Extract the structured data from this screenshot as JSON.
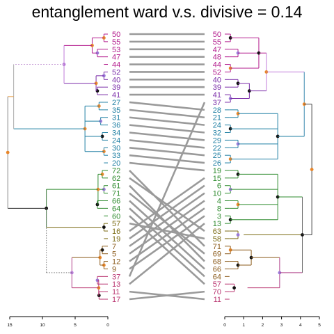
{
  "title": "entanglement  ward  v.s. divisive  = 0.14",
  "left_axis": {
    "ticks": [
      "15",
      "10",
      "5",
      "0"
    ],
    "max": 15
  },
  "right_axis": {
    "ticks": [
      "0",
      "1",
      "2",
      "3",
      "4",
      "5"
    ],
    "max": 5
  },
  "colors": {
    "magenta": "#b2188b",
    "purple": "#7a2ca8",
    "violet": "#9b5bd0",
    "teal": "#1f7fa3",
    "green": "#2e8b2e",
    "olive": "#7a6a12",
    "brown": "#8b5a1a",
    "rose": "#b8326e",
    "connector": "#9a9a9a"
  },
  "left_labels": [
    {
      "text": "50",
      "color": "#b2188b"
    },
    {
      "text": "55",
      "color": "#b2188b"
    },
    {
      "text": "53",
      "color": "#b2188b"
    },
    {
      "text": "47",
      "color": "#b2188b"
    },
    {
      "text": "44",
      "color": "#b2188b"
    },
    {
      "text": "52",
      "color": "#7a2ca8"
    },
    {
      "text": "40",
      "color": "#7a2ca8"
    },
    {
      "text": "39",
      "color": "#7a2ca8"
    },
    {
      "text": "41",
      "color": "#7a2ca8"
    },
    {
      "text": "27",
      "color": "#1f7fa3"
    },
    {
      "text": "35",
      "color": "#1f7fa3"
    },
    {
      "text": "31",
      "color": "#1f7fa3"
    },
    {
      "text": "36",
      "color": "#1f7fa3"
    },
    {
      "text": "34",
      "color": "#1f7fa3"
    },
    {
      "text": "24",
      "color": "#1f7fa3"
    },
    {
      "text": "30",
      "color": "#1f7fa3"
    },
    {
      "text": "33",
      "color": "#1f7fa3"
    },
    {
      "text": "20",
      "color": "#1f7fa3"
    },
    {
      "text": "72",
      "color": "#2e8b2e"
    },
    {
      "text": "62",
      "color": "#2e8b2e"
    },
    {
      "text": "61",
      "color": "#2e8b2e"
    },
    {
      "text": "71",
      "color": "#2e8b2e"
    },
    {
      "text": "66",
      "color": "#2e8b2e"
    },
    {
      "text": "64",
      "color": "#2e8b2e"
    },
    {
      "text": "60",
      "color": "#2e8b2e"
    },
    {
      "text": "57",
      "color": "#7a6a12"
    },
    {
      "text": "16",
      "color": "#7a6a12"
    },
    {
      "text": "19",
      "color": "#7a6a12"
    },
    {
      "text": "7",
      "color": "#8b5a1a"
    },
    {
      "text": "5",
      "color": "#8b5a1a"
    },
    {
      "text": "12",
      "color": "#8b5a1a"
    },
    {
      "text": "9",
      "color": "#8b5a1a"
    },
    {
      "text": "37",
      "color": "#b8326e"
    },
    {
      "text": "13",
      "color": "#b8326e"
    },
    {
      "text": "11",
      "color": "#b8326e"
    },
    {
      "text": "17",
      "color": "#b8326e"
    }
  ],
  "right_labels": [
    {
      "text": "50",
      "color": "#b2188b"
    },
    {
      "text": "55",
      "color": "#b2188b"
    },
    {
      "text": "47",
      "color": "#b2188b"
    },
    {
      "text": "48",
      "color": "#b2188b"
    },
    {
      "text": "44",
      "color": "#b2188b"
    },
    {
      "text": "52",
      "color": "#b2188b"
    },
    {
      "text": "40",
      "color": "#7a2ca8"
    },
    {
      "text": "39",
      "color": "#7a2ca8"
    },
    {
      "text": "41",
      "color": "#7a2ca8"
    },
    {
      "text": "37",
      "color": "#7a2ca8"
    },
    {
      "text": "28",
      "color": "#1f7fa3"
    },
    {
      "text": "21",
      "color": "#1f7fa3"
    },
    {
      "text": "24",
      "color": "#1f7fa3"
    },
    {
      "text": "32",
      "color": "#1f7fa3"
    },
    {
      "text": "29",
      "color": "#1f7fa3"
    },
    {
      "text": "22",
      "color": "#1f7fa3"
    },
    {
      "text": "25",
      "color": "#1f7fa3"
    },
    {
      "text": "26",
      "color": "#1f7fa3"
    },
    {
      "text": "19",
      "color": "#2e8b2e"
    },
    {
      "text": "15",
      "color": "#2e8b2e"
    },
    {
      "text": "6",
      "color": "#2e8b2e"
    },
    {
      "text": "10",
      "color": "#2e8b2e"
    },
    {
      "text": "4",
      "color": "#2e8b2e"
    },
    {
      "text": "8",
      "color": "#2e8b2e"
    },
    {
      "text": "3",
      "color": "#2e8b2e"
    },
    {
      "text": "13",
      "color": "#2e8b2e"
    },
    {
      "text": "63",
      "color": "#7a6a12"
    },
    {
      "text": "58",
      "color": "#7a6a12"
    },
    {
      "text": "71",
      "color": "#8b5a1a"
    },
    {
      "text": "69",
      "color": "#8b5a1a"
    },
    {
      "text": "68",
      "color": "#8b5a1a"
    },
    {
      "text": "66",
      "color": "#8b5a1a"
    },
    {
      "text": "64",
      "color": "#8b5a1a"
    },
    {
      "text": "57",
      "color": "#b8326e"
    },
    {
      "text": "70",
      "color": "#b8326e"
    },
    {
      "text": "11",
      "color": "#b8326e"
    }
  ],
  "connections": [
    [
      0,
      0
    ],
    [
      1,
      1
    ],
    [
      2,
      2
    ],
    [
      3,
      3
    ],
    [
      4,
      4
    ],
    [
      5,
      5
    ],
    [
      6,
      6
    ],
    [
      7,
      7
    ],
    [
      8,
      8
    ],
    [
      9,
      10
    ],
    [
      10,
      11
    ],
    [
      11,
      12
    ],
    [
      12,
      13
    ],
    [
      13,
      14
    ],
    [
      14,
      15
    ],
    [
      15,
      16
    ],
    [
      16,
      17
    ],
    [
      17,
      18
    ],
    [
      18,
      28
    ],
    [
      19,
      26
    ],
    [
      20,
      30
    ],
    [
      21,
      29
    ],
    [
      22,
      31
    ],
    [
      23,
      32
    ],
    [
      24,
      33
    ],
    [
      25,
      27
    ],
    [
      26,
      19
    ],
    [
      27,
      20
    ],
    [
      28,
      21
    ],
    [
      29,
      22
    ],
    [
      30,
      23
    ],
    [
      31,
      24
    ],
    [
      32,
      9
    ],
    [
      33,
      25
    ],
    [
      34,
      35
    ],
    [
      35,
      34
    ]
  ]
}
